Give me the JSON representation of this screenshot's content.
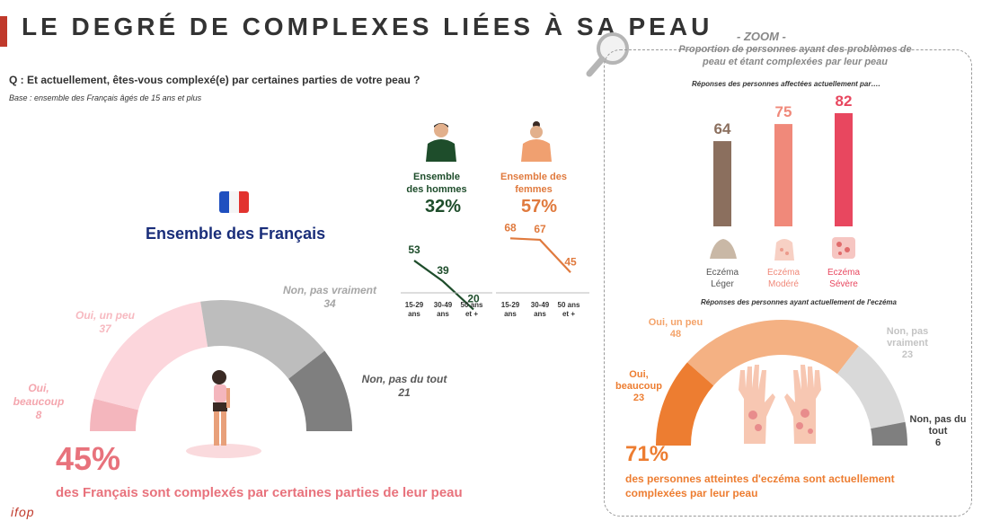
{
  "title": "LE DEGRÉ DE COMPLEXES LIÉES À SA PEAU",
  "question": "Q : Et actuellement, êtes-vous complexé(e) par certaines parties de votre peau ?",
  "base": "Base : ensemble des Français âgés de 15 ans et plus",
  "ensemble": {
    "label": "Ensemble des Français",
    "big_pct": "45%",
    "big_sub": "des Français sont complexés par certaines parties de leur peau"
  },
  "colors": {
    "dark_green": "#1e4d2b",
    "orange_text": "#e07a3e",
    "pink": "#e8727c",
    "navy": "#1a2e7a",
    "bar_leger": "#8b6f5e",
    "bar_modere": "#f0897a",
    "bar_severe": "#e8475f"
  },
  "logo": "ifop",
  "zoom": {
    "title": "- ZOOM -",
    "subtitle": "Proportion de personnes ayant des problèmes de peau et étant complexées par leur peau",
    "resp1": "Réponses des personnes affectées actuellement par….",
    "resp2": "Réponses des personnes ayant actuellement de l'eczéma",
    "big_pct": "71%",
    "big_sub": "des personnes atteintes d'eczéma sont actuellement complexées par leur peau"
  },
  "chart_data": [
    {
      "type": "pie",
      "variant": "semicircle",
      "series": [
        {
          "name": "Oui, beaucoup",
          "value": 8,
          "color": "#f4b6bd"
        },
        {
          "name": "Oui, un peu",
          "value": 37,
          "color": "#fcd6dc"
        },
        {
          "name": "Non, pas vraiment",
          "value": 34,
          "color": "#bdbdbd"
        },
        {
          "name": "Non, pas du tout",
          "value": 21,
          "color": "#7f7f7f"
        }
      ]
    },
    {
      "type": "line",
      "title": "Ensemble des hommes",
      "total": "32%",
      "categories": [
        "15-29 ans",
        "30-49 ans",
        "50 ans et +"
      ],
      "values": [
        53,
        39,
        20
      ],
      "color": "#1e4d2b"
    },
    {
      "type": "line",
      "title": "Ensemble des femmes",
      "total": "57%",
      "categories": [
        "15-29 ans",
        "30-49 ans",
        "50 ans et +"
      ],
      "values": [
        68,
        67,
        45
      ],
      "color": "#e07a3e"
    },
    {
      "type": "bar",
      "categories": [
        "Eczéma Léger",
        "Eczéma Modéré",
        "Eczéma Sévère"
      ],
      "values": [
        64,
        75,
        82
      ],
      "ylim": [
        0,
        100
      ]
    },
    {
      "type": "pie",
      "variant": "semicircle",
      "series": [
        {
          "name": "Oui, beaucoup",
          "value": 23,
          "color": "#ed7d31"
        },
        {
          "name": "Oui, un peu",
          "value": 48,
          "color": "#f4b183"
        },
        {
          "name": "Non, pas vraiment",
          "value": 23,
          "color": "#d9d9d9"
        },
        {
          "name": "Non, pas du tout",
          "value": 6,
          "color": "#7f7f7f"
        }
      ]
    }
  ]
}
